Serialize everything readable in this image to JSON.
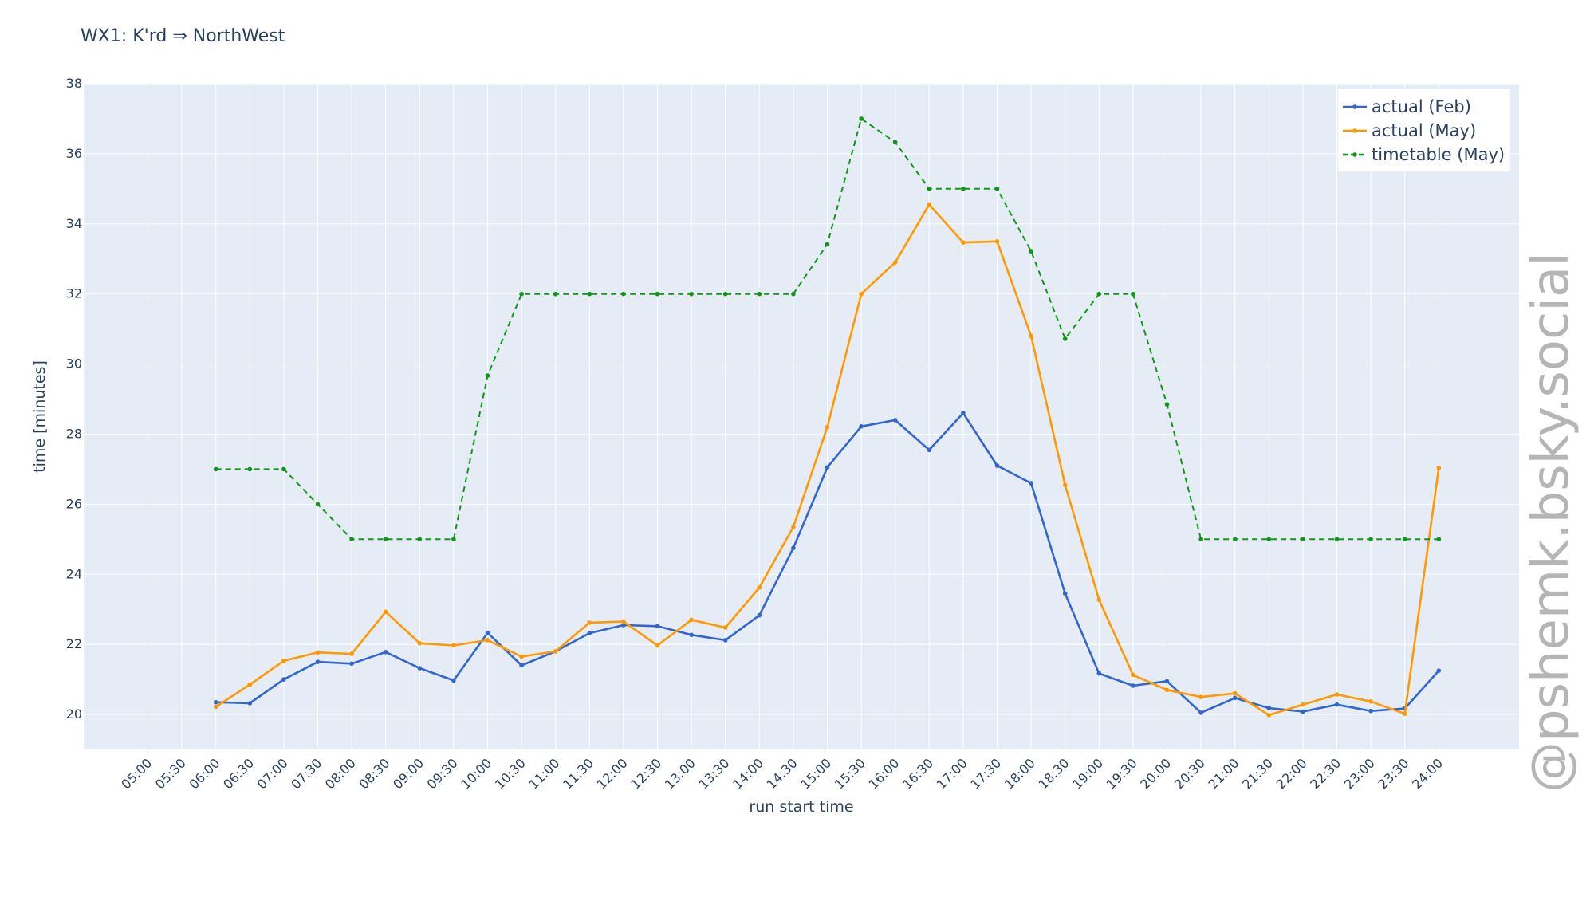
{
  "watermark": "@pshemk.bsky.social",
  "chart_data": {
    "type": "line",
    "title": "WX1: K'rd ⇒ NorthWest",
    "xlabel": "run start time",
    "ylabel": "time [minutes]",
    "ylim": [
      19,
      38
    ],
    "y_ticks": [
      20,
      22,
      24,
      26,
      28,
      30,
      32,
      34,
      36,
      38
    ],
    "categories": [
      "05:00",
      "05:30",
      "06:00",
      "06:30",
      "07:00",
      "07:30",
      "08:00",
      "08:30",
      "09:00",
      "09:30",
      "10:00",
      "10:30",
      "11:00",
      "11:30",
      "12:00",
      "12:30",
      "13:00",
      "13:30",
      "14:00",
      "14:30",
      "15:00",
      "15:30",
      "16:00",
      "16:30",
      "17:00",
      "17:30",
      "18:00",
      "18:30",
      "19:00",
      "19:30",
      "20:00",
      "20:30",
      "21:00",
      "21:30",
      "22:00",
      "22:30",
      "23:00",
      "23:30",
      "24:00"
    ],
    "grid": true,
    "legend_position": "top-right",
    "series": [
      {
        "name": "actual (Feb)",
        "color": "#3366cc",
        "dash": "solid",
        "values": [
          null,
          null,
          20.35,
          20.32,
          21.0,
          21.5,
          21.45,
          21.78,
          21.32,
          20.97,
          22.33,
          21.4,
          21.8,
          22.32,
          22.55,
          22.52,
          22.27,
          22.12,
          22.83,
          24.75,
          27.05,
          28.22,
          28.4,
          27.55,
          28.6,
          27.1,
          26.6,
          23.45,
          21.17,
          20.82,
          20.95,
          20.05,
          20.47,
          20.18,
          20.08,
          20.28,
          20.1,
          20.17,
          21.25
        ]
      },
      {
        "name": "actual (May)",
        "color": "#ff9900",
        "dash": "solid",
        "values": [
          null,
          null,
          20.22,
          20.85,
          21.53,
          21.77,
          21.73,
          22.93,
          22.03,
          21.97,
          22.12,
          21.65,
          21.8,
          22.62,
          22.65,
          21.97,
          22.7,
          22.48,
          23.62,
          25.35,
          28.2,
          32.0,
          32.9,
          34.55,
          33.47,
          33.5,
          30.8,
          26.55,
          23.27,
          21.13,
          20.7,
          20.5,
          20.6,
          19.98,
          20.28,
          20.57,
          20.37,
          20.02,
          27.03
        ]
      },
      {
        "name": "timetable (May)",
        "color": "#109618",
        "dash": "dashed",
        "values": [
          null,
          null,
          27,
          27,
          27,
          26,
          25,
          25,
          25,
          25,
          29.67,
          32,
          32,
          32,
          32,
          32,
          32,
          32,
          32,
          32,
          33.42,
          37.0,
          36.33,
          35,
          35,
          35,
          33.22,
          30.72,
          32,
          32,
          28.85,
          25,
          25,
          25,
          25,
          25,
          25,
          25,
          25
        ]
      }
    ]
  }
}
